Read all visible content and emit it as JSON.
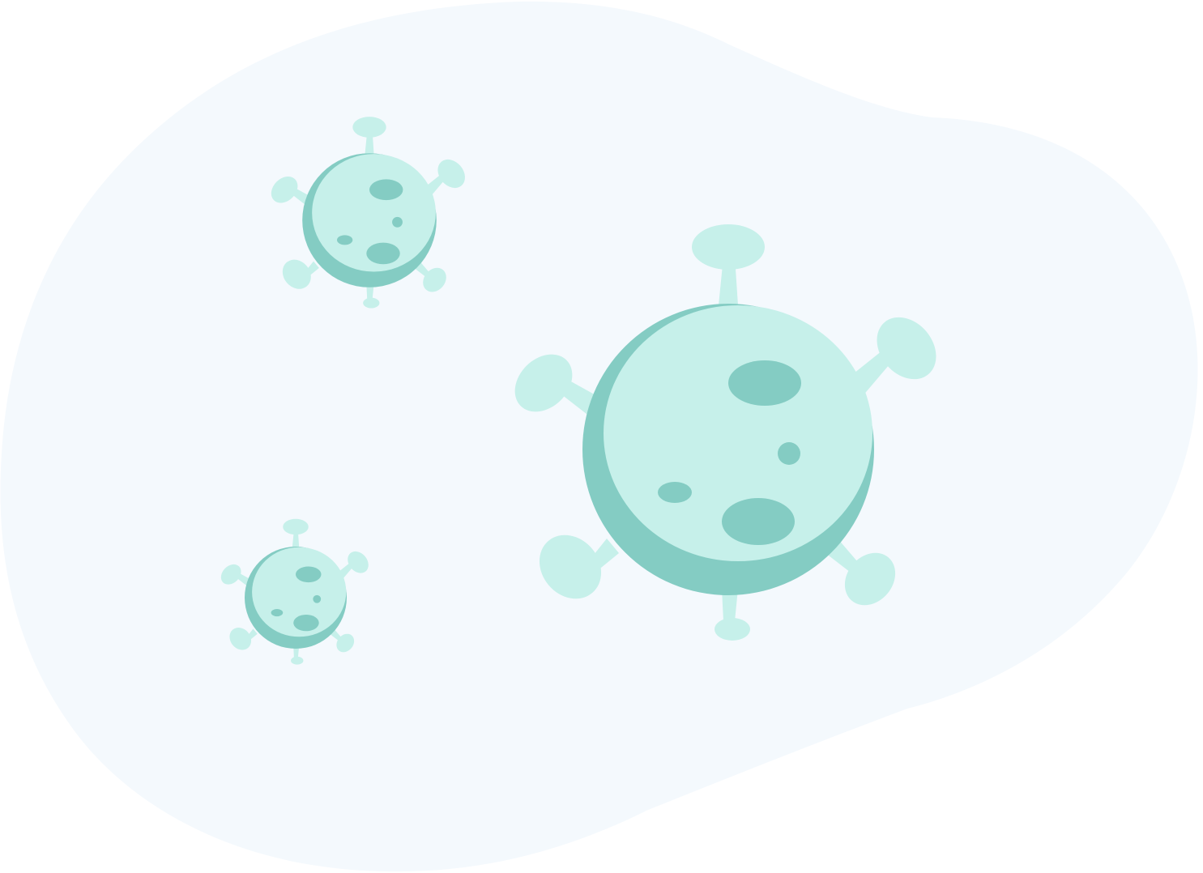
{
  "illustration": {
    "subject": "virus particles",
    "count": 3,
    "colors": {
      "page_background": "#ffffff",
      "blob_background": "#f4f9fd",
      "virus_light": "#c6f0ea",
      "virus_dark": "#84ccc3"
    },
    "icons": [
      "background-blob",
      "virus-large-icon",
      "virus-medium-icon",
      "virus-small-icon"
    ]
  }
}
